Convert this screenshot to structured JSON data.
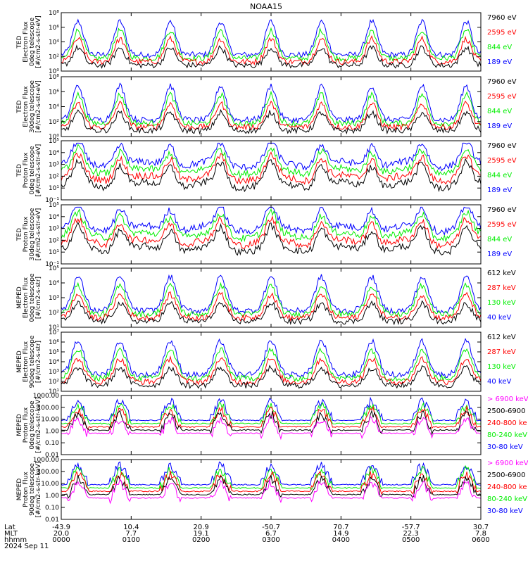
{
  "title": "NOAA15",
  "colors": {
    "black": "#000000",
    "red": "#ff0000",
    "green": "#00ee00",
    "blue": "#0000ff",
    "magenta": "#ff00ff"
  },
  "chart_data": [
    {
      "type": "line",
      "ylabel": [
        "TED",
        "Electron Flux",
        "0deg telescope",
        "[#/cm2-s-str-eV]"
      ],
      "log": true,
      "yticks": [
        "10⁰",
        "10²",
        "10⁴",
        "10⁶",
        "10⁸"
      ],
      "series": [
        {
          "name": "7960 eV",
          "color": "black"
        },
        {
          "name": "2595 eV",
          "color": "red"
        },
        {
          "name": "844 eV",
          "color": "green"
        },
        {
          "name": "189 eV",
          "color": "blue"
        }
      ]
    },
    {
      "type": "line",
      "ylabel": [
        "TED",
        "Electron Flux",
        "30deg telescope",
        "[#/cm2-s-str-eV]"
      ],
      "log": true,
      "yticks": [
        "10⁰",
        "10²",
        "10⁴",
        "10⁶",
        "10⁸"
      ],
      "series": [
        {
          "name": "7960 eV",
          "color": "black"
        },
        {
          "name": "2595 eV",
          "color": "red"
        },
        {
          "name": "844 eV",
          "color": "green"
        },
        {
          "name": "189 eV",
          "color": "blue"
        }
      ]
    },
    {
      "type": "line",
      "ylabel": [
        "TED",
        "Proton Flux",
        "0deg telescope",
        "[#/cm2-s-str-eV]"
      ],
      "log": true,
      "yticks": [
        "10⁻¹",
        "10¹",
        "10²",
        "10³",
        "10⁴",
        "10⁵"
      ],
      "series": [
        {
          "name": "7960 eV",
          "color": "black"
        },
        {
          "name": "2595 eV",
          "color": "red"
        },
        {
          "name": "844 eV",
          "color": "green"
        },
        {
          "name": "189 eV",
          "color": "blue"
        }
      ]
    },
    {
      "type": "line",
      "ylabel": [
        "TED",
        "Proton Flux",
        "30deg telescope",
        "[#/cm2-s-str-eV]"
      ],
      "log": true,
      "yticks": [
        "10⁻¹",
        "10¹",
        "10²",
        "10³",
        "10⁴",
        "10⁵"
      ],
      "series": [
        {
          "name": "7960 eV",
          "color": "black"
        },
        {
          "name": "2595 eV",
          "color": "red"
        },
        {
          "name": "844 eV",
          "color": "green"
        },
        {
          "name": "189 eV",
          "color": "blue"
        }
      ]
    },
    {
      "type": "line",
      "ylabel": [
        "MEPED",
        "Electron Flux",
        "0deg telescope",
        "[#/cm2-s-str]"
      ],
      "log": true,
      "yticks": [
        "10¹",
        "10²",
        "10³",
        "10⁴",
        "10⁵"
      ],
      "series": [
        {
          "name": "612 keV",
          "color": "black"
        },
        {
          "name": "287 keV",
          "color": "red"
        },
        {
          "name": "130 keV",
          "color": "green"
        },
        {
          "name": "40 keV",
          "color": "blue"
        }
      ]
    },
    {
      "type": "line",
      "ylabel": [
        "MEPED",
        "Electron Flux",
        "90deg telescope",
        "[#/cm2-s-str]"
      ],
      "log": true,
      "yticks": [
        "10¹",
        "10²",
        "10³",
        "10⁴",
        "10⁵",
        "10⁶",
        "10⁷"
      ],
      "series": [
        {
          "name": "612 keV",
          "color": "black"
        },
        {
          "name": "287 keV",
          "color": "red"
        },
        {
          "name": "130 keV",
          "color": "green"
        },
        {
          "name": "40 keV",
          "color": "blue"
        }
      ]
    },
    {
      "type": "line",
      "ylabel": [
        "MEPED",
        "Proton Flux",
        "0deg telescope",
        "[#/cm2-s-str-keV]"
      ],
      "log": true,
      "yticks": [
        "0.01",
        "0.10",
        "1.00",
        "10.00",
        "100.00",
        "1000.00"
      ],
      "series": [
        {
          "name": "> 6900 keV",
          "color": "magenta"
        },
        {
          "name": "2500-6900",
          "color": "black"
        },
        {
          "name": "240-800 ke",
          "color": "red"
        },
        {
          "name": "80-240 keV",
          "color": "green"
        },
        {
          "name": "30-80 keV",
          "color": "blue"
        }
      ]
    },
    {
      "type": "line",
      "ylabel": [
        "MEPED",
        "Proton Flux",
        "90deg telescope",
        "[#/cm2-s-str-keV]"
      ],
      "log": true,
      "yticks": [
        "0.01",
        "0.10",
        "1.00",
        "10.00",
        "100.00",
        "1000.00"
      ],
      "series": [
        {
          "name": "> 6900 keV",
          "color": "magenta"
        },
        {
          "name": "2500-6900",
          "color": "black"
        },
        {
          "name": "240-800 ke",
          "color": "red"
        },
        {
          "name": "80-240 keV",
          "color": "green"
        },
        {
          "name": "30-80 keV",
          "color": "blue"
        }
      ]
    }
  ],
  "xaxis": {
    "row_labels": [
      "Lat",
      "MLT",
      "hhmm",
      "2024 Sep 11"
    ],
    "ticks": [
      {
        "lat": "-43.9",
        "mlt": "20.0",
        "time": "0000"
      },
      {
        "lat": "10.4",
        "mlt": "7.7",
        "time": "0100"
      },
      {
        "lat": "20.9",
        "mlt": "19.1",
        "time": "0200"
      },
      {
        "lat": "-50.7",
        "mlt": "6.7",
        "time": "0300"
      },
      {
        "lat": "70.7",
        "mlt": "14.9",
        "time": "0400"
      },
      {
        "lat": "-57.7",
        "mlt": "22.3",
        "time": "0500"
      },
      {
        "lat": "30.7",
        "mlt": "7.8",
        "time": "0600"
      }
    ]
  }
}
